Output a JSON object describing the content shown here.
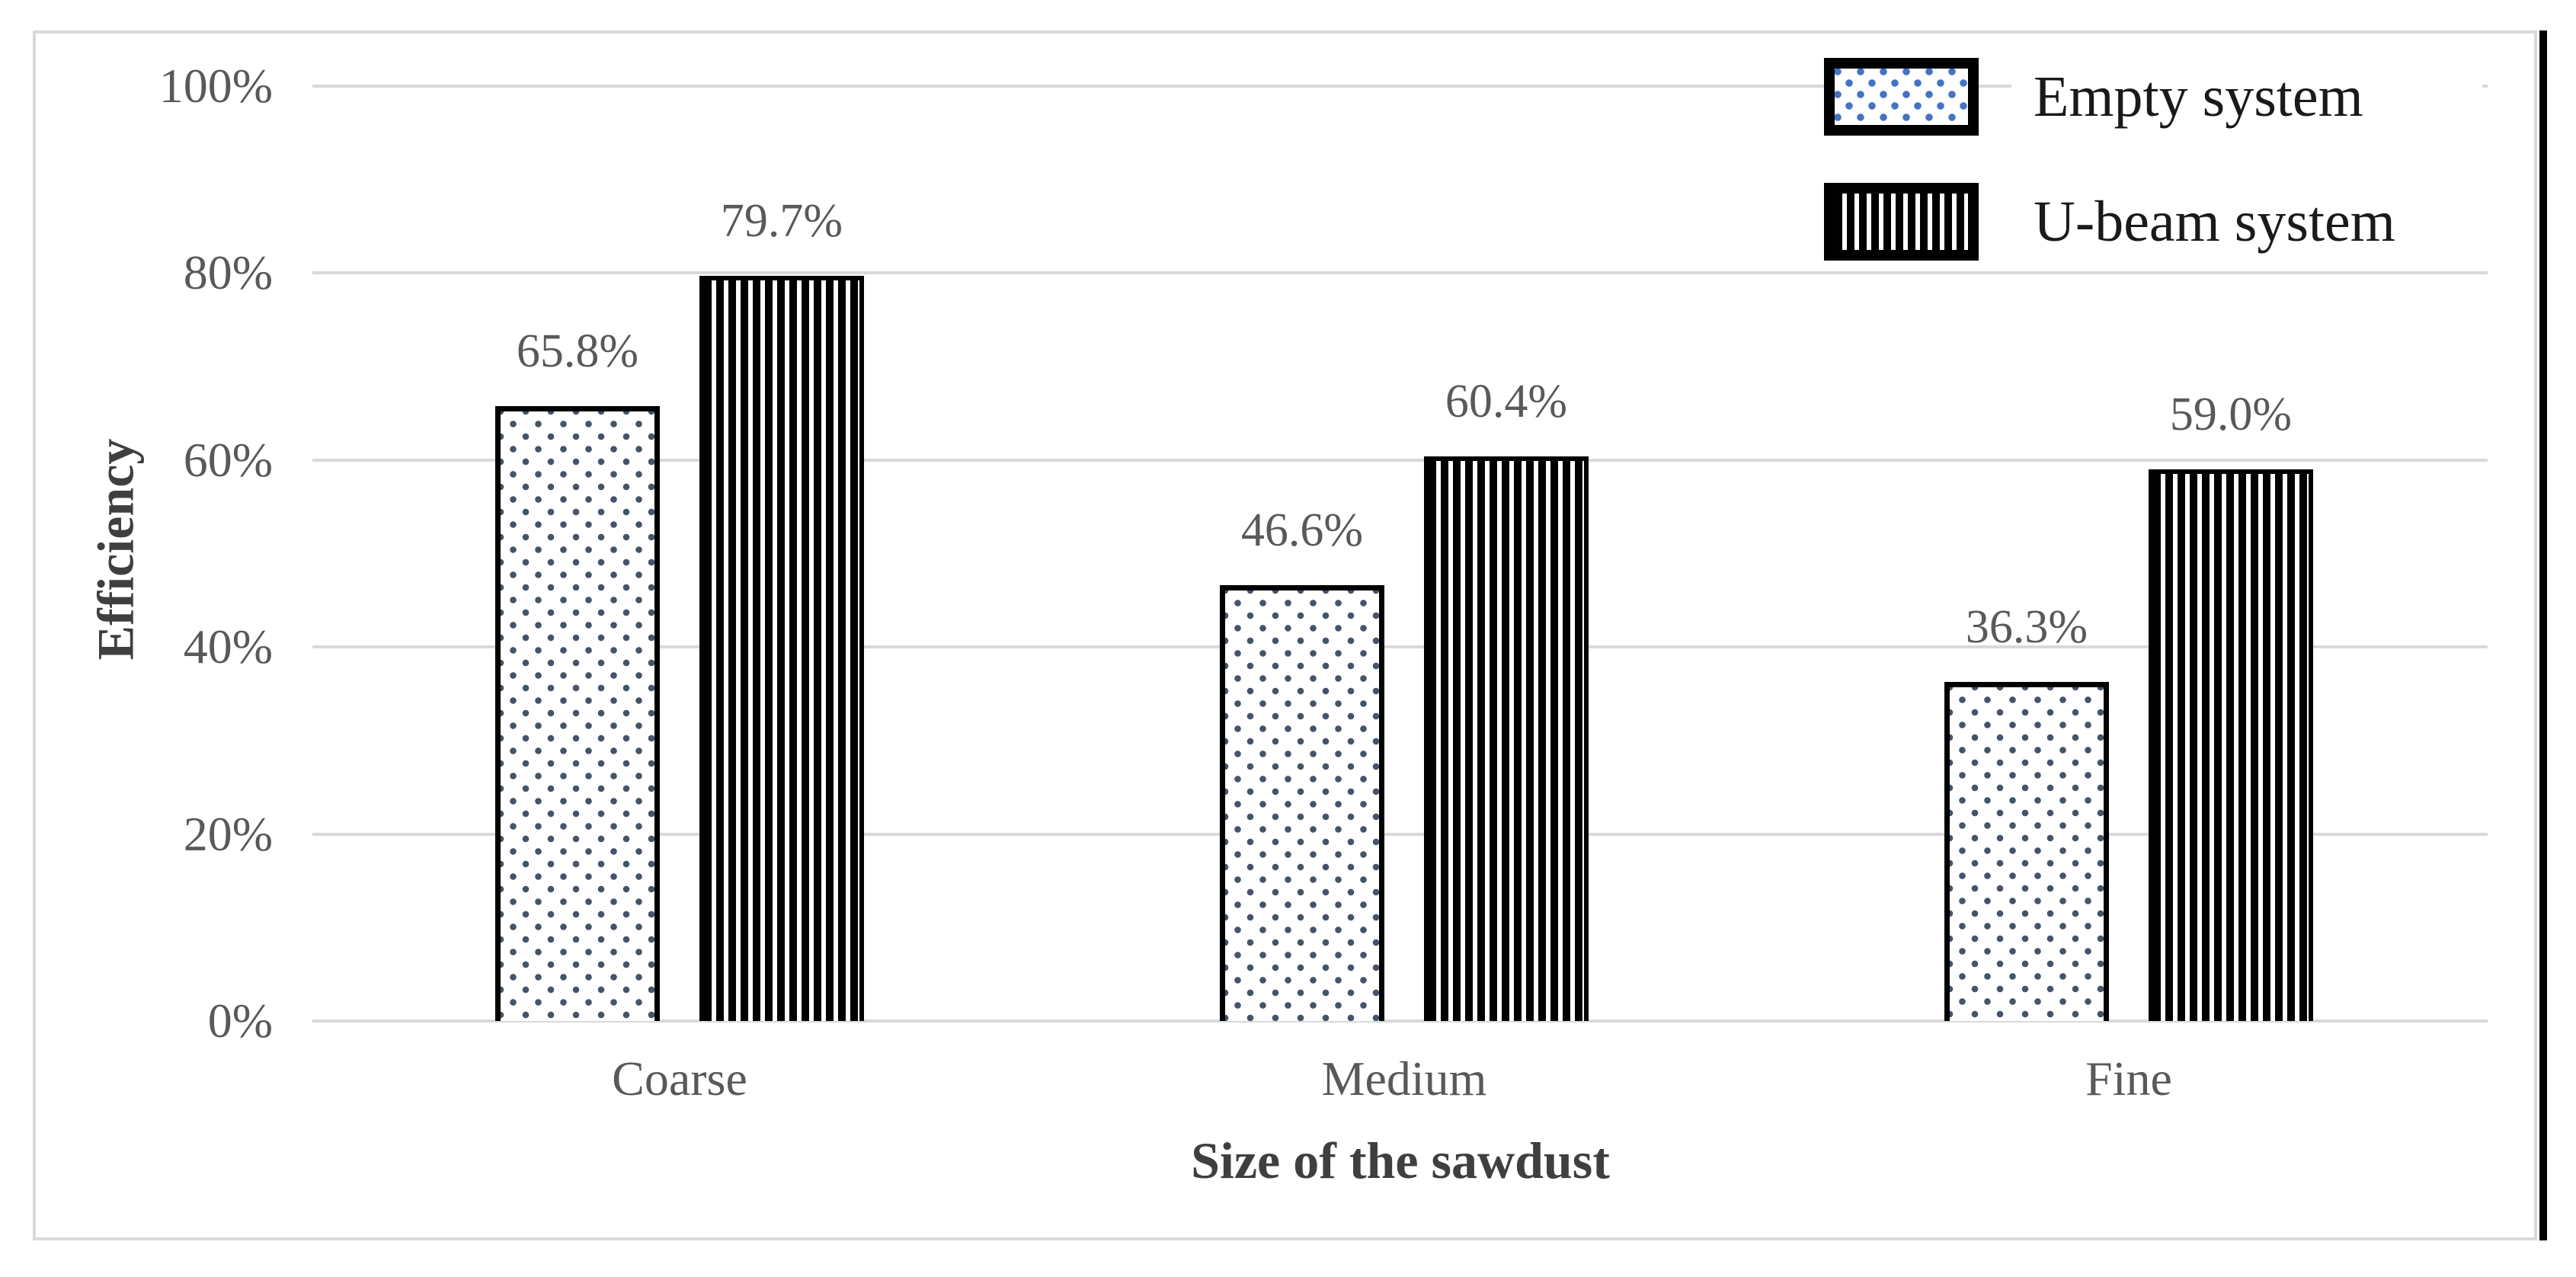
{
  "figure": {
    "background": "#ffffff",
    "border_color": "#d9d9d9",
    "right_edge_bar_color": "#000000"
  },
  "chart_data": {
    "type": "bar",
    "title": "",
    "categories": [
      "Coarse",
      "Medium",
      "Fine"
    ],
    "series": [
      {
        "name": "Empty system",
        "pattern": "dots",
        "values": [
          65.8,
          46.6,
          36.3
        ],
        "labels": [
          "65.8%",
          "46.6%",
          "36.3%"
        ],
        "dot_color": "#44546a",
        "legend_dot_color": "#4472c4"
      },
      {
        "name": "U-beam system",
        "pattern": "vertical-stripes",
        "values": [
          79.7,
          60.4,
          59.0
        ],
        "labels": [
          "79.7%",
          "60.4%",
          "59.0%"
        ],
        "stripe_color": "#000000"
      }
    ],
    "xlabel": "Size of the sawdust",
    "ylabel": "Efficiency",
    "ylim": [
      0,
      100
    ],
    "yticks": [
      0,
      20,
      40,
      60,
      80,
      100
    ],
    "ytick_labels": [
      "0%",
      "20%",
      "40%",
      "60%",
      "80%",
      "100%"
    ],
    "grid": true,
    "gridline_color": "#d9d9d9",
    "legend_position": "top-right",
    "tick_label_color": "#595959",
    "data_label_color": "#595959",
    "axis_title_color": "#3f3f3f",
    "legend_text_color": "#1a1a1a",
    "bar_outline_color": "#000000"
  }
}
